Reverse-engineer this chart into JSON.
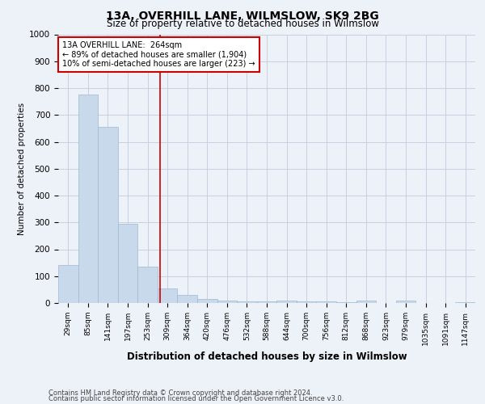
{
  "title": "13A, OVERHILL LANE, WILMSLOW, SK9 2BG",
  "subtitle": "Size of property relative to detached houses in Wilmslow",
  "xlabel": "Distribution of detached houses by size in Wilmslow",
  "ylabel": "Number of detached properties",
  "footnote1": "Contains HM Land Registry data © Crown copyright and database right 2024.",
  "footnote2": "Contains public sector information licensed under the Open Government Licence v3.0.",
  "bar_labels": [
    "29sqm",
    "85sqm",
    "141sqm",
    "197sqm",
    "253sqm",
    "309sqm",
    "364sqm",
    "420sqm",
    "476sqm",
    "532sqm",
    "588sqm",
    "644sqm",
    "700sqm",
    "756sqm",
    "812sqm",
    "868sqm",
    "923sqm",
    "979sqm",
    "1035sqm",
    "1091sqm",
    "1147sqm"
  ],
  "bar_values": [
    140,
    775,
    655,
    295,
    135,
    55,
    30,
    15,
    10,
    7,
    5,
    8,
    5,
    6,
    4,
    10,
    0,
    8,
    0,
    0,
    3
  ],
  "bar_color": "#c8d9eb",
  "bar_edge_color": "#a0b8d0",
  "grid_color": "#c8d0de",
  "background_color": "#edf1f8",
  "vline_x": 4.64,
  "vline_color": "#cc0000",
  "annotation_line1": "13A OVERHILL LANE:  264sqm",
  "annotation_line2": "← 89% of detached houses are smaller (1,904)",
  "annotation_line3": "10% of semi-detached houses are larger (223) →",
  "annotation_box_color": "#ffffff",
  "annotation_box_edge": "#cc0000",
  "ylim": [
    0,
    1000
  ],
  "yticks": [
    0,
    100,
    200,
    300,
    400,
    500,
    600,
    700,
    800,
    900,
    1000
  ]
}
